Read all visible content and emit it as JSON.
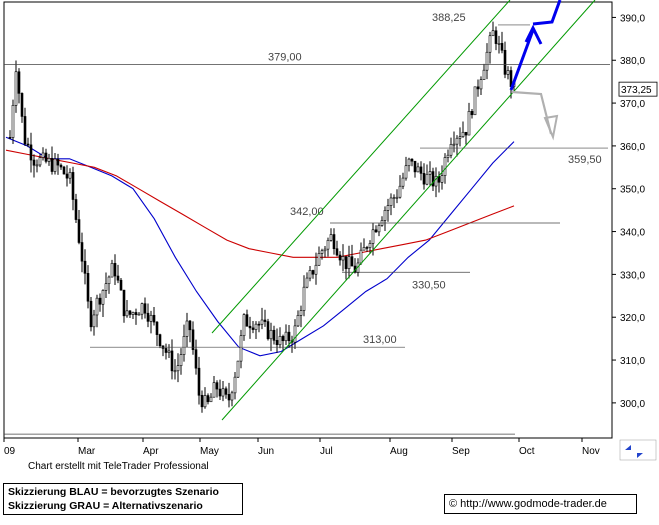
{
  "chart_data": {
    "type": "candlestick",
    "x_ticks": [
      "09",
      "Mar",
      "Apr",
      "May",
      "Jun",
      "Jul",
      "Aug",
      "Sep",
      "Oct",
      "Nov"
    ],
    "y_ticks": [
      300,
      310,
      320,
      330,
      340,
      350,
      360,
      370,
      380,
      390
    ],
    "ylim": [
      292,
      394
    ],
    "last_price_label": "373,25",
    "annotations": [
      {
        "label": "388,25",
        "value": 388.25
      },
      {
        "label": "379,00",
        "value": 379.0
      },
      {
        "label": "359,50",
        "value": 359.5
      },
      {
        "label": "342,00",
        "value": 342.0
      },
      {
        "label": "330,50",
        "value": 330.5
      },
      {
        "label": "313,00",
        "value": 313.0
      }
    ],
    "moving_averages": [
      {
        "color": "#0000cc",
        "values": [
          362,
          360,
          357,
          357,
          355,
          353,
          350,
          343,
          334,
          326,
          319,
          313,
          311,
          312,
          315,
          318,
          322,
          326,
          329,
          334,
          338,
          344,
          350,
          356,
          361
        ]
      },
      {
        "color": "#cc0000",
        "values": [
          359,
          358,
          357,
          356,
          355,
          353,
          350,
          347,
          344,
          341,
          338,
          336,
          335,
          334,
          334,
          334,
          335,
          336,
          337,
          338,
          340,
          342,
          344,
          346
        ]
      }
    ],
    "scenario_colors": {
      "preferred": "#0000ee",
      "alternative": "#b0b0b0"
    },
    "channel_color": "#009900"
  },
  "footer": {
    "credit": "Chart erstellt mit TeleTrader Professional",
    "legend_blue": "Skizzierung BLAU = bevorzugtes Szenario",
    "legend_grey": "Skizzierung GRAU = Alternativszenario",
    "copyright_symbol": "©",
    "source_url": "http://www.godmode-trader.de"
  }
}
